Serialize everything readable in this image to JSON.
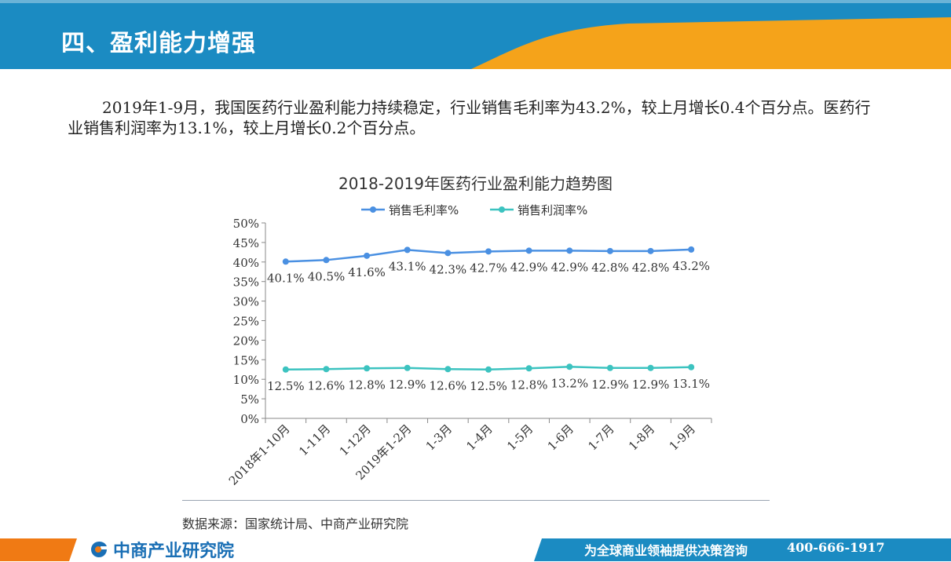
{
  "header": {
    "title": "四、盈利能力增强",
    "colors": {
      "blue": "#1b8bc2",
      "orange": "#f5a31a"
    }
  },
  "paragraph": "2019年1-9月，我国医药行业盈利能力持续稳定，行业销售毛利率为43.2%，较上月增长0.4个百分点。医药行业销售利润率为13.1%，较上月增长0.2个百分点。",
  "chart_data": {
    "type": "line",
    "title": "2018-2019年医药行业盈利能力趋势图",
    "categories": [
      "2018年1-10月",
      "1-11月",
      "1-12月",
      "2019年1-2月",
      "1-3月",
      "1-4月",
      "1-5月",
      "1-6月",
      "1-7月",
      "1-8月",
      "1-9月"
    ],
    "series": [
      {
        "name": "销售毛利率%",
        "color": "#4a90e2",
        "values": [
          40.1,
          40.5,
          41.6,
          43.1,
          42.3,
          42.7,
          42.9,
          42.9,
          42.8,
          42.8,
          43.2
        ],
        "labels": [
          "40.1%",
          "40.5%",
          "41.6%",
          "43.1%",
          "42.3%",
          "42.7%",
          "42.9%",
          "42.9%",
          "42.8%",
          "42.8%",
          "43.2%"
        ]
      },
      {
        "name": "销售利润率%",
        "color": "#3cc3c0",
        "values": [
          12.5,
          12.6,
          12.8,
          12.9,
          12.6,
          12.5,
          12.8,
          13.2,
          12.9,
          12.9,
          13.1
        ],
        "labels": [
          "12.5%",
          "12.6%",
          "12.8%",
          "12.9%",
          "12.6%",
          "12.5%",
          "12.8%",
          "13.2%",
          "12.9%",
          "12.9%",
          "13.1%"
        ]
      }
    ],
    "ylim": [
      0,
      50
    ],
    "yticks": [
      "0%",
      "5%",
      "10%",
      "15%",
      "20%",
      "25%",
      "30%",
      "35%",
      "40%",
      "45%",
      "50%"
    ],
    "legend_position": "top",
    "grid": false
  },
  "source": "数据来源：国家统计局、中商产业研究院",
  "footer": {
    "logo": "中商产业研究院",
    "slogan": "为全球商业领袖提供决策咨询",
    "phone": "400-666-1917",
    "colors": {
      "blue": "#1b8bc2",
      "orange": "#f07a14"
    }
  }
}
